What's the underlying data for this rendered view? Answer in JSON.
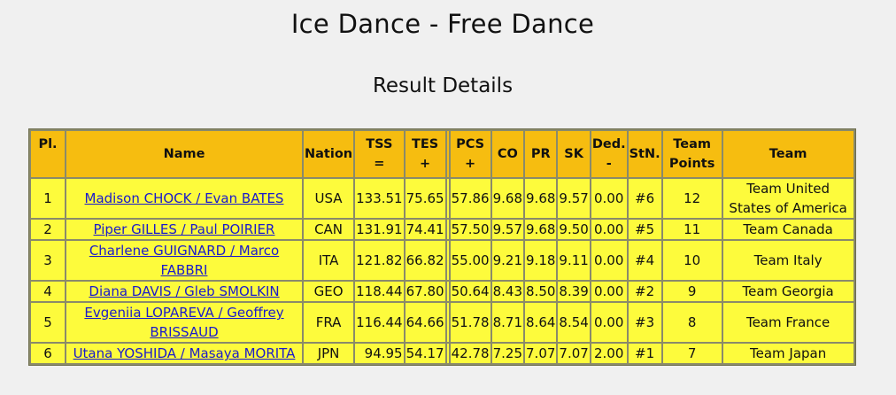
{
  "page": {
    "title": "Ice Dance - Free Dance",
    "subtitle": "Result Details"
  },
  "table": {
    "headers": {
      "pl": "Pl.",
      "name": "Name",
      "nation": "Nation",
      "tss_1": "TSS",
      "tss_2": "=",
      "tes_1": "TES",
      "tes_2": "+",
      "pcs_1": "PCS",
      "pcs_2": "+",
      "co": "CO",
      "pr": "PR",
      "sk": "SK",
      "ded_1": "Ded.",
      "ded_2": "-",
      "stn": "StN.",
      "team_points_1": "Team",
      "team_points_2": "Points",
      "team": "Team"
    },
    "rows": [
      {
        "pl": "1",
        "name_1": "Madison CHOCK / Evan BATES",
        "name_2": "",
        "nation": "USA",
        "tss": "133.51",
        "tes": "75.65",
        "pcs": "57.86",
        "co": "9.68",
        "pr": "9.68",
        "sk": "9.57",
        "ded": "0.00",
        "stn": "#6",
        "team_points": "12",
        "team_1": "Team United",
        "team_2": "States of America"
      },
      {
        "pl": "2",
        "name_1": "Piper GILLES / Paul POIRIER",
        "name_2": "",
        "nation": "CAN",
        "tss": "131.91",
        "tes": "74.41",
        "pcs": "57.50",
        "co": "9.57",
        "pr": "9.68",
        "sk": "9.50",
        "ded": "0.00",
        "stn": "#5",
        "team_points": "11",
        "team_1": "Team Canada",
        "team_2": ""
      },
      {
        "pl": "3",
        "name_1": "Charlene GUIGNARD / Marco",
        "name_2": "FABBRI",
        "nation": "ITA",
        "tss": "121.82",
        "tes": "66.82",
        "pcs": "55.00",
        "co": "9.21",
        "pr": "9.18",
        "sk": "9.11",
        "ded": "0.00",
        "stn": "#4",
        "team_points": "10",
        "team_1": "Team Italy",
        "team_2": ""
      },
      {
        "pl": "4",
        "name_1": "Diana DAVIS / Gleb SMOLKIN",
        "name_2": "",
        "nation": "GEO",
        "tss": "118.44",
        "tes": "67.80",
        "pcs": "50.64",
        "co": "8.43",
        "pr": "8.50",
        "sk": "8.39",
        "ded": "0.00",
        "stn": "#2",
        "team_points": "9",
        "team_1": "Team Georgia",
        "team_2": ""
      },
      {
        "pl": "5",
        "name_1": "Evgeniia LOPAREVA / Geoffrey",
        "name_2": "BRISSAUD",
        "nation": "FRA",
        "tss": "116.44",
        "tes": "64.66",
        "pcs": "51.78",
        "co": "8.71",
        "pr": "8.64",
        "sk": "8.54",
        "ded": "0.00",
        "stn": "#3",
        "team_points": "8",
        "team_1": "Team France",
        "team_2": ""
      },
      {
        "pl": "6",
        "name_1": "Utana YOSHIDA / Masaya MORITA",
        "name_2": "",
        "nation": "JPN",
        "tss": "94.95",
        "tes": "54.17",
        "pcs": "42.78",
        "co": "7.25",
        "pr": "7.07",
        "sk": "7.07",
        "ded": "2.00",
        "stn": "#1",
        "team_points": "7",
        "team_1": "Team Japan",
        "team_2": ""
      }
    ]
  },
  "colors": {
    "header_bg": "#f6bd10",
    "cell_bg": "#fdfb3c",
    "link": "#1a1acc",
    "page_bg": "#f0f0f0"
  }
}
